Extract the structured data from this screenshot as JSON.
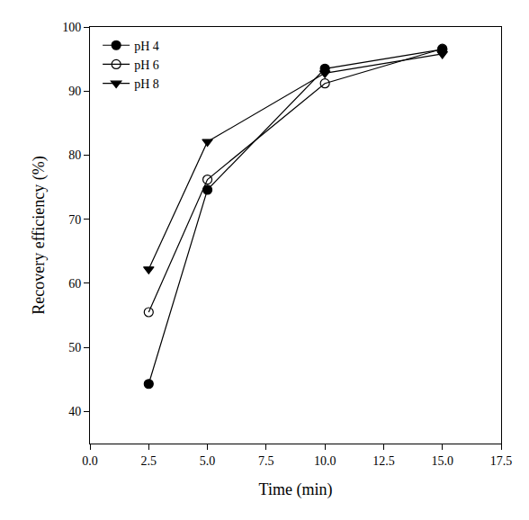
{
  "chart_data": {
    "type": "line",
    "x_label": "Time (min)",
    "y_label": "Recovery efficiency (%)",
    "x": [
      2.5,
      5,
      10,
      15
    ],
    "series": [
      {
        "name": "pH 4",
        "color": "#000000",
        "marker": "circle",
        "line_style": "solid",
        "values": [
          44.3,
          74.6,
          93.5,
          96.5
        ]
      },
      {
        "name": "pH 6",
        "color": "#000000",
        "marker": "circle-open",
        "line_style": "solid",
        "values": [
          55.5,
          76.2,
          91.2,
          96.6
        ]
      },
      {
        "name": "pH 8",
        "color": "#000000",
        "marker": "triangle-down",
        "line_style": "solid",
        "values": [
          62.2,
          82.1,
          92.8,
          95.8
        ]
      }
    ],
    "xlim": [
      0,
      17.5
    ],
    "xticks": [
      {
        "value": 0,
        "label": "0.0"
      },
      2.5,
      {
        "value": 5,
        "label": "5.0"
      },
      7.5,
      {
        "value": 10,
        "label": "10.0"
      },
      12.5,
      {
        "value": 15,
        "label": "15.0"
      },
      17.5
    ],
    "ylim": [
      35,
      100
    ],
    "yticks": [
      40,
      50,
      60,
      70,
      80,
      90,
      100
    ],
    "grid": false,
    "legend": "upper left"
  }
}
